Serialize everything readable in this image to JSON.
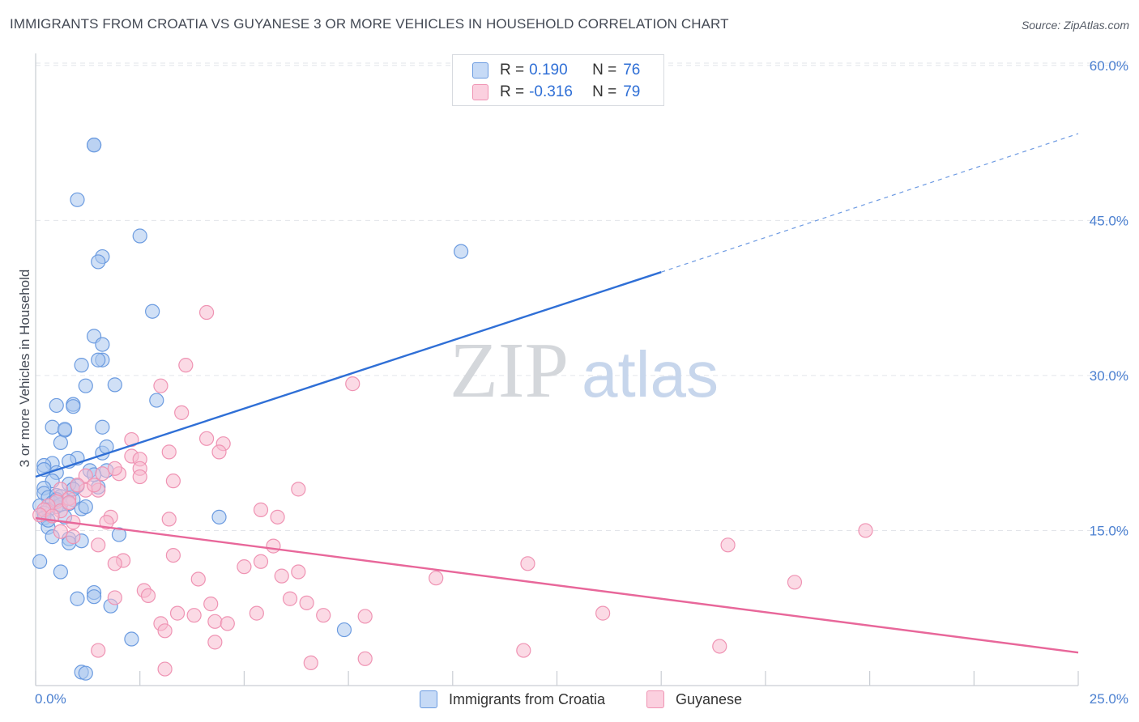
{
  "header": {
    "title": "IMMIGRANTS FROM CROATIA VS GUYANESE 3 OR MORE VEHICLES IN HOUSEHOLD CORRELATION CHART",
    "source": "Source: ZipAtlas.com"
  },
  "watermark": {
    "zip": "ZIP",
    "atlas": "atlas"
  },
  "legend": {
    "rows": [
      {
        "r_label": "R =",
        "r_value": "0.190",
        "n_label": "N =",
        "n_value": "76"
      },
      {
        "r_label": "R =",
        "r_value": "-0.316",
        "n_label": "N =",
        "n_value": "79"
      }
    ]
  },
  "chart_data": {
    "type": "scatter",
    "title": "IMMIGRANTS FROM CROATIA VS GUYANESE 3 OR MORE VEHICLES IN HOUSEHOLD CORRELATION CHART",
    "xlabel": "",
    "ylabel": "3 or more Vehicles in Household",
    "xlim": [
      0,
      25
    ],
    "ylim": [
      0,
      63
    ],
    "x_tick_labels": [
      "0.0%",
      "25.0%"
    ],
    "y_ticks": [
      15,
      30,
      45,
      60
    ],
    "y_tick_labels": [
      "15.0%",
      "30.0%",
      "45.0%",
      "60.0%"
    ],
    "grid": true,
    "legend_position": "top-center",
    "colors": {
      "croatia_fill": "#a9c6ef",
      "croatia_stroke": "#6b9be0",
      "croatia_line": "#2f6fd6",
      "guyanese_fill": "#f7bcd0",
      "guyanese_stroke": "#ef93b3",
      "guyanese_line": "#e8679a",
      "grid": "#e2e5ea",
      "tick_text": "#4a7fd0"
    },
    "series": [
      {
        "name": "Immigrants from Croatia",
        "r": 0.19,
        "n": 76,
        "trend": {
          "x0": 0,
          "y0": 20.2,
          "x1": 15,
          "y1": 40.0,
          "dash_to_x": 25,
          "dash_to_y": 53.4
        },
        "points": [
          [
            1.4,
            52.3
          ],
          [
            1.4,
            52.3
          ],
          [
            1.0,
            47.0
          ],
          [
            2.5,
            43.5
          ],
          [
            1.6,
            41.5
          ],
          [
            1.5,
            41.0
          ],
          [
            10.2,
            42.0
          ],
          [
            2.8,
            36.2
          ],
          [
            1.4,
            33.8
          ],
          [
            1.6,
            33.0
          ],
          [
            1.6,
            31.5
          ],
          [
            1.1,
            31.0
          ],
          [
            1.5,
            31.5
          ],
          [
            1.2,
            29.0
          ],
          [
            1.9,
            29.1
          ],
          [
            2.9,
            27.6
          ],
          [
            0.5,
            27.1
          ],
          [
            0.9,
            27.2
          ],
          [
            0.9,
            27.0
          ],
          [
            0.4,
            25.0
          ],
          [
            0.7,
            24.7
          ],
          [
            1.6,
            25.0
          ],
          [
            0.7,
            24.8
          ],
          [
            0.6,
            23.5
          ],
          [
            1.6,
            22.5
          ],
          [
            1.7,
            23.1
          ],
          [
            1.0,
            22.0
          ],
          [
            0.4,
            21.5
          ],
          [
            0.2,
            21.3
          ],
          [
            0.2,
            20.9
          ],
          [
            0.5,
            20.6
          ],
          [
            0.8,
            21.7
          ],
          [
            1.3,
            20.8
          ],
          [
            1.7,
            20.8
          ],
          [
            0.4,
            19.8
          ],
          [
            0.2,
            19.1
          ],
          [
            0.2,
            18.6
          ],
          [
            0.3,
            18.2
          ],
          [
            0.5,
            18.4
          ],
          [
            1.0,
            19.3
          ],
          [
            1.5,
            19.2
          ],
          [
            1.4,
            20.4
          ],
          [
            0.6,
            18.3
          ],
          [
            0.9,
            18.0
          ],
          [
            0.4,
            17.7
          ],
          [
            0.5,
            17.3
          ],
          [
            0.1,
            17.4
          ],
          [
            0.3,
            17.0
          ],
          [
            0.6,
            17.5
          ],
          [
            0.8,
            17.6
          ],
          [
            0.2,
            16.7
          ],
          [
            0.2,
            16.2
          ],
          [
            1.1,
            17.1
          ],
          [
            0.7,
            16.3
          ],
          [
            4.4,
            16.3
          ],
          [
            0.3,
            15.3
          ],
          [
            0.4,
            14.4
          ],
          [
            0.8,
            14.2
          ],
          [
            1.1,
            14.0
          ],
          [
            0.8,
            13.8
          ],
          [
            2.0,
            14.6
          ],
          [
            0.1,
            12.0
          ],
          [
            0.6,
            11.0
          ],
          [
            1.4,
            9.0
          ],
          [
            1.4,
            8.6
          ],
          [
            1.0,
            8.4
          ],
          [
            1.8,
            7.7
          ],
          [
            7.4,
            5.4
          ],
          [
            2.3,
            4.5
          ],
          [
            1.1,
            1.3
          ],
          [
            1.2,
            1.2
          ],
          [
            0.8,
            19.5
          ],
          [
            1.2,
            17.3
          ],
          [
            0.5,
            18.0
          ],
          [
            0.9,
            19.0
          ],
          [
            0.3,
            16.0
          ]
        ]
      },
      {
        "name": "Guyanese",
        "r": -0.316,
        "n": 79,
        "trend": {
          "x0": 0,
          "y0": 16.2,
          "x1": 25,
          "y1": 3.2
        },
        "points": [
          [
            4.1,
            36.1
          ],
          [
            3.6,
            31.0
          ],
          [
            3.0,
            29.0
          ],
          [
            7.6,
            29.2
          ],
          [
            3.5,
            26.4
          ],
          [
            2.3,
            23.8
          ],
          [
            4.1,
            23.9
          ],
          [
            4.5,
            23.4
          ],
          [
            3.2,
            22.6
          ],
          [
            4.4,
            22.6
          ],
          [
            2.3,
            22.2
          ],
          [
            2.5,
            21.9
          ],
          [
            2.5,
            21.0
          ],
          [
            2.0,
            20.5
          ],
          [
            2.5,
            20.2
          ],
          [
            3.3,
            19.8
          ],
          [
            1.6,
            20.5
          ],
          [
            1.2,
            20.3
          ],
          [
            6.3,
            19.0
          ],
          [
            1.5,
            18.9
          ],
          [
            1.2,
            18.9
          ],
          [
            1.0,
            19.4
          ],
          [
            0.6,
            19.0
          ],
          [
            1.4,
            19.4
          ],
          [
            0.8,
            18.1
          ],
          [
            0.5,
            17.8
          ],
          [
            0.3,
            17.4
          ],
          [
            0.2,
            17.0
          ],
          [
            0.6,
            16.9
          ],
          [
            0.1,
            16.5
          ],
          [
            5.4,
            17.0
          ],
          [
            5.8,
            16.3
          ],
          [
            1.8,
            16.3
          ],
          [
            3.2,
            16.1
          ],
          [
            1.7,
            15.8
          ],
          [
            0.9,
            15.8
          ],
          [
            0.6,
            14.9
          ],
          [
            0.9,
            14.4
          ],
          [
            19.9,
            15.0
          ],
          [
            16.6,
            13.6
          ],
          [
            5.7,
            13.5
          ],
          [
            2.1,
            12.1
          ],
          [
            3.3,
            12.6
          ],
          [
            5.4,
            12.0
          ],
          [
            5.0,
            11.5
          ],
          [
            1.9,
            11.8
          ],
          [
            11.8,
            11.8
          ],
          [
            6.3,
            11.0
          ],
          [
            5.9,
            10.6
          ],
          [
            3.9,
            10.3
          ],
          [
            9.6,
            10.4
          ],
          [
            18.2,
            10.0
          ],
          [
            2.6,
            9.2
          ],
          [
            2.7,
            8.7
          ],
          [
            1.9,
            8.5
          ],
          [
            6.1,
            8.4
          ],
          [
            6.5,
            8.0
          ],
          [
            4.2,
            7.9
          ],
          [
            5.3,
            7.0
          ],
          [
            3.4,
            7.0
          ],
          [
            3.8,
            6.8
          ],
          [
            6.9,
            6.8
          ],
          [
            7.9,
            6.7
          ],
          [
            13.6,
            7.0
          ],
          [
            4.3,
            6.2
          ],
          [
            4.6,
            6.0
          ],
          [
            3.0,
            6.0
          ],
          [
            3.1,
            5.3
          ],
          [
            4.3,
            4.2
          ],
          [
            1.5,
            3.4
          ],
          [
            11.7,
            3.4
          ],
          [
            16.4,
            3.8
          ],
          [
            7.9,
            2.6
          ],
          [
            6.6,
            2.2
          ],
          [
            3.1,
            1.6
          ],
          [
            1.5,
            13.6
          ],
          [
            0.4,
            16.4
          ],
          [
            0.8,
            17.7
          ],
          [
            1.9,
            21.0
          ]
        ]
      }
    ]
  },
  "bottom_legend": {
    "items": [
      {
        "label": "Immigrants from Croatia"
      },
      {
        "label": "Guyanese"
      }
    ]
  }
}
